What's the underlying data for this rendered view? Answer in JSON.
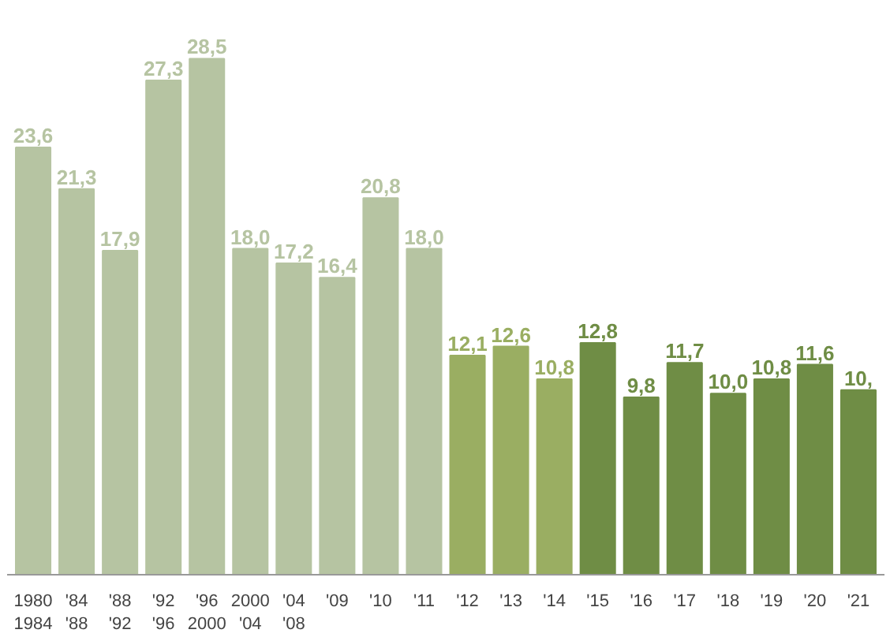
{
  "chart_data": {
    "type": "bar",
    "categories": [
      "1980\n1984",
      "'84\n'88",
      "'88\n'92",
      "'92\n'96",
      "'96\n2000",
      "2000\n'04",
      "'04\n'08",
      "'09",
      "'10",
      "'11",
      "'12",
      "'13",
      "'14",
      "'15",
      "'16",
      "'17",
      "'18",
      "'19",
      "'20",
      "'21"
    ],
    "values": [
      23.6,
      21.3,
      17.9,
      27.3,
      28.5,
      18.0,
      17.2,
      16.4,
      20.8,
      18.0,
      12.1,
      12.6,
      10.8,
      12.8,
      9.8,
      11.7,
      10.0,
      10.8,
      11.6,
      10.2
    ],
    "value_labels": [
      "23,6",
      "21,3",
      "17,9",
      "27,3",
      "28,5",
      "18,0",
      "17,2",
      "16,4",
      "20,8",
      "18,0",
      "12,1",
      "12,6",
      "10,8",
      "12,8",
      "9,8",
      "11,7",
      "10,0",
      "10,8",
      "11,6",
      "10,"
    ],
    "colors": [
      "#b6c4a2",
      "#b6c4a2",
      "#b6c4a2",
      "#b6c4a2",
      "#b6c4a2",
      "#b6c4a2",
      "#b6c4a2",
      "#b6c4a2",
      "#b6c4a2",
      "#b6c4a2",
      "#9aae62",
      "#9aae62",
      "#9aae62",
      "#6f8d45",
      "#6f8d45",
      "#6f8d45",
      "#6f8d45",
      "#6f8d45",
      "#6f8d45",
      "#6f8d45"
    ],
    "grid": false
  }
}
